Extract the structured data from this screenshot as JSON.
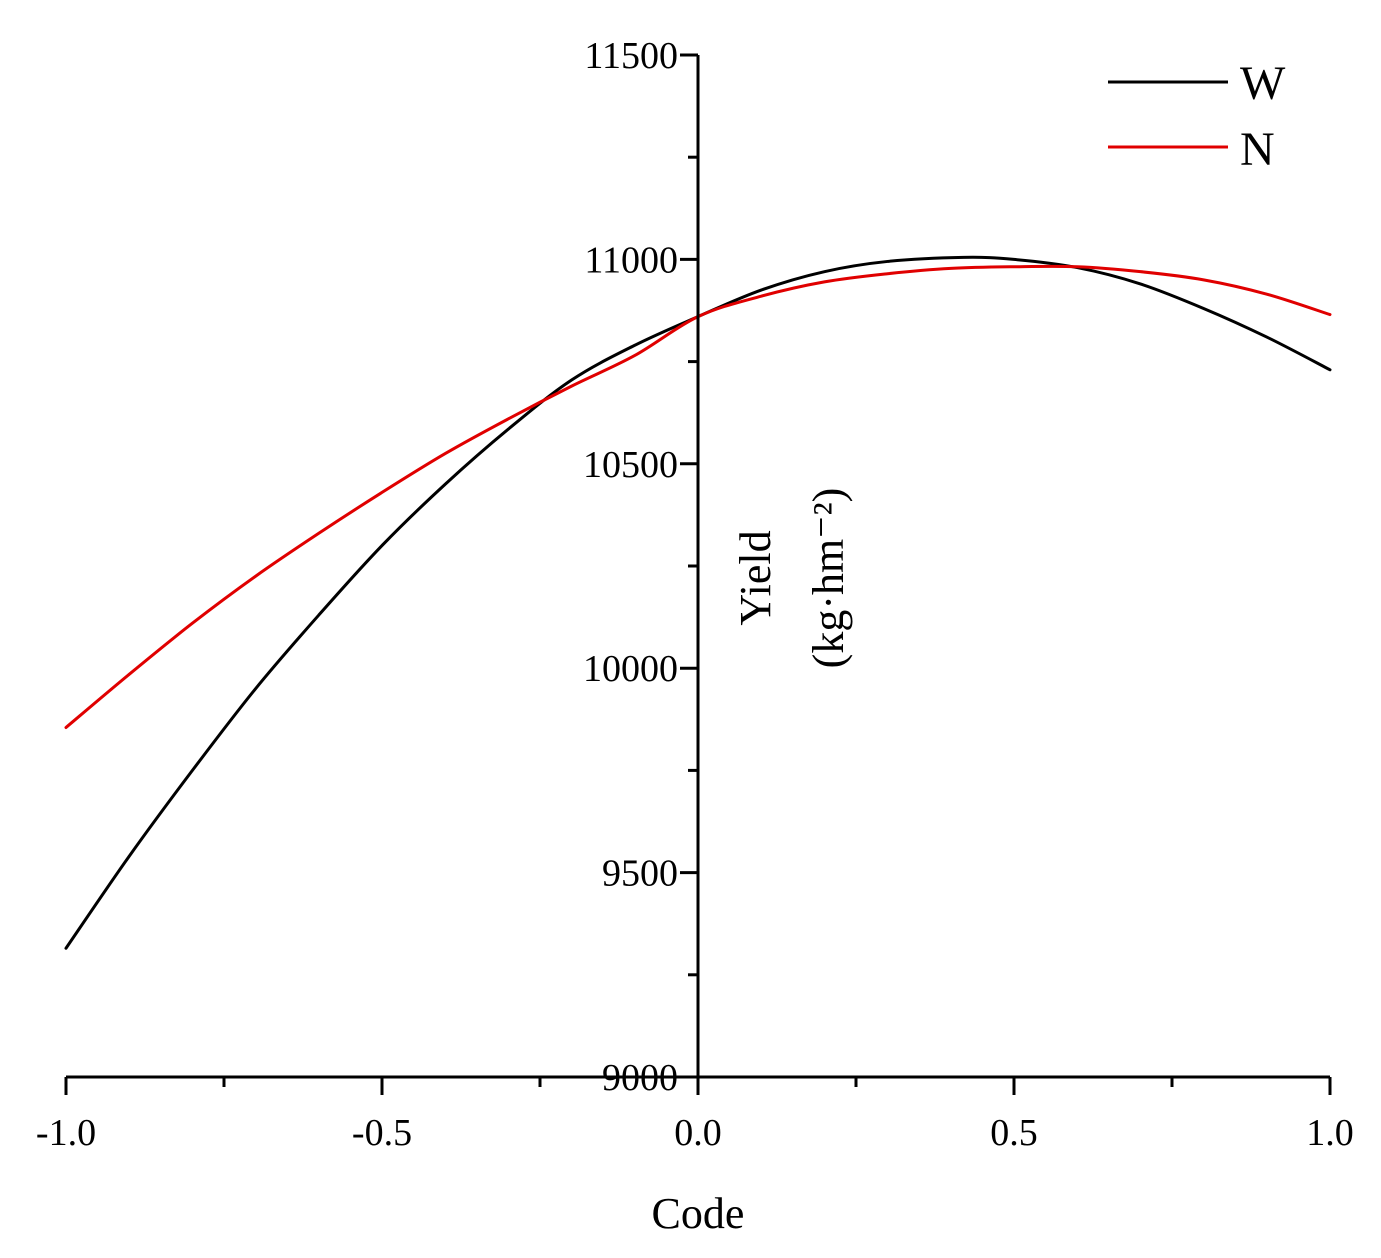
{
  "chart_data": {
    "type": "line",
    "title": "",
    "xlabel": "Code",
    "ylabel": "Yield",
    "ylabel_unit": "(kg·hm⁻²)",
    "xlim": [
      -1.0,
      1.0
    ],
    "ylim": [
      9000,
      11500
    ],
    "x_ticks": [
      "-1.0",
      "-0.5",
      "0.0",
      "0.5",
      "1.0"
    ],
    "y_ticks": [
      "9000",
      "9500",
      "10000",
      "10500",
      "11000",
      "11500"
    ],
    "grid": false,
    "legend_position": "top-right",
    "series": [
      {
        "name": "W",
        "color": "#000000",
        "x": [
          -1.0,
          -0.9,
          -0.8,
          -0.7,
          -0.6,
          -0.5,
          -0.4,
          -0.3,
          -0.2,
          -0.1,
          0.0,
          0.1,
          0.2,
          0.3,
          0.42,
          0.5,
          0.6,
          0.7,
          0.8,
          0.9,
          1.0
        ],
        "values": [
          9315,
          9540,
          9750,
          9950,
          10130,
          10300,
          10450,
          10585,
          10705,
          10790,
          10860,
          10925,
          10970,
          10995,
          11005,
          11000,
          10980,
          10940,
          10880,
          10810,
          10730
        ]
      },
      {
        "name": "N",
        "color": "#e00000",
        "x": [
          -1.0,
          -0.9,
          -0.8,
          -0.7,
          -0.6,
          -0.5,
          -0.4,
          -0.3,
          -0.2,
          -0.1,
          0.0,
          0.1,
          0.2,
          0.3,
          0.4,
          0.5,
          0.6,
          0.7,
          0.8,
          0.9,
          1.0
        ],
        "values": [
          9855,
          9985,
          10110,
          10225,
          10330,
          10430,
          10525,
          10610,
          10690,
          10765,
          10860,
          10910,
          10945,
          10965,
          10978,
          10982,
          10982,
          10970,
          10950,
          10915,
          10865
        ]
      }
    ]
  }
}
